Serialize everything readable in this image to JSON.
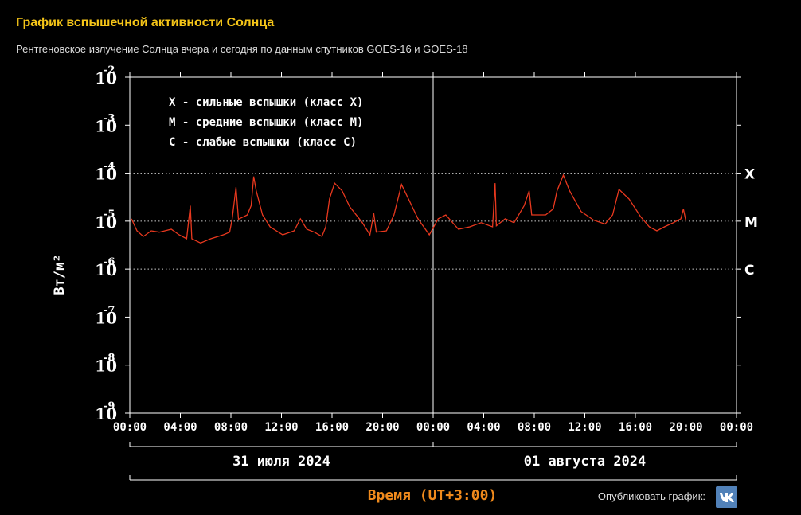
{
  "header": {
    "title": "График вспышечной активности Солнца",
    "subtitle": "Рентгеновское излучение Солнца вчера и сегодня по данным спутников GOES-16 и GOES-18"
  },
  "chart_data": {
    "type": "line",
    "log_y": true,
    "y_label": "Вт/м²",
    "x_label": "Время (UT+3:00)",
    "annotations": [
      "X  - сильные вспышки (класс X)",
      "M  - средние вспышки (класс M)",
      "C  - слабые вспышки (класс C)"
    ],
    "thresholds": [
      {
        "value": 0.0001,
        "label": "X"
      },
      {
        "value": 1e-05,
        "label": "M"
      },
      {
        "value": 1e-06,
        "label": "C"
      }
    ],
    "dates": [
      "31 июля 2024",
      "01 августа 2024"
    ],
    "xlim": [
      0,
      48
    ],
    "xticks": [
      {
        "value": 0,
        "label": "00:00"
      },
      {
        "value": 4,
        "label": "04:00"
      },
      {
        "value": 8,
        "label": "08:00"
      },
      {
        "value": 12,
        "label": "12:00"
      },
      {
        "value": 16,
        "label": "16:00"
      },
      {
        "value": 20,
        "label": "20:00"
      },
      {
        "value": 24,
        "label": "00:00"
      },
      {
        "value": 28,
        "label": "04:00"
      },
      {
        "value": 32,
        "label": "08:00"
      },
      {
        "value": 36,
        "label": "12:00"
      },
      {
        "value": 40,
        "label": "16:00"
      },
      {
        "value": 44,
        "label": "20:00"
      },
      {
        "value": 48,
        "label": "00:00"
      }
    ],
    "ylim": [
      1e-09,
      0.01
    ],
    "yticks": [
      {
        "value": 0.01,
        "label": "10",
        "exponent": "-2"
      },
      {
        "value": 0.001,
        "label": "10",
        "exponent": "-3"
      },
      {
        "value": 0.0001,
        "label": "10",
        "exponent": "-4"
      },
      {
        "value": 1e-05,
        "label": "10",
        "exponent": "-5"
      },
      {
        "value": 1e-06,
        "label": "10",
        "exponent": "-6"
      },
      {
        "value": 1e-07,
        "label": "10",
        "exponent": "-7"
      },
      {
        "value": 1e-08,
        "label": "10",
        "exponent": "-8"
      },
      {
        "value": 1e-09,
        "label": "10",
        "exponent": "-9"
      }
    ],
    "series": [
      {
        "color": "#e8381e",
        "x": [
          0.13,
          0.57,
          1.07,
          1.7,
          2.33,
          3.28,
          3.9,
          4.5,
          4.79,
          4.91,
          5.6,
          6.4,
          7.4,
          7.9,
          8.1,
          8.4,
          8.6,
          9.3,
          9.6,
          9.8,
          10.0,
          10.5,
          11.1,
          12.1,
          13.0,
          13.5,
          14.0,
          14.6,
          15.2,
          15.5,
          15.8,
          16.2,
          16.8,
          17.4,
          18.4,
          19.0,
          19.3,
          19.5,
          20.3,
          20.9,
          21.5,
          22.2,
          22.8,
          23.7,
          24.4,
          25.0,
          26.0,
          26.9,
          27.8,
          28.7,
          28.9,
          29.0,
          29.7,
          30.4,
          31.2,
          31.6,
          31.8,
          32.9,
          33.5,
          33.8,
          34.3,
          34.8,
          35.7,
          36.7,
          37.6,
          38.2,
          38.7,
          39.5,
          40.4,
          41.1,
          41.7,
          42.3,
          43.0,
          43.6,
          43.8,
          44.0
        ],
        "values": [
          1.12e-05,
          6.3e-06,
          4.8e-06,
          6.3e-06,
          5.9e-06,
          6.8e-06,
          5.2e-06,
          4.3e-06,
          2.1e-05,
          4.3e-06,
          3.5e-06,
          4.3e-06,
          5.2e-06,
          5.9e-06,
          1.12e-05,
          5.1e-05,
          1.1e-05,
          1.35e-05,
          2.1e-05,
          8.5e-05,
          4.3e-05,
          1.35e-05,
          7.6e-06,
          5.2e-06,
          6.3e-06,
          1.12e-05,
          6.8e-06,
          5.9e-06,
          4.8e-06,
          7.6e-06,
          2.9e-05,
          6.2e-05,
          4.3e-05,
          2e-05,
          9.3e-06,
          5.2e-06,
          1.45e-05,
          5.9e-06,
          6.3e-06,
          1.35e-05,
          5.8e-05,
          2.4e-05,
          1.12e-05,
          5.2e-06,
          1.12e-05,
          1.35e-05,
          6.8e-06,
          7.6e-06,
          9.3e-06,
          7.6e-06,
          6.2e-05,
          8e-06,
          1.12e-05,
          9.3e-06,
          2.1e-05,
          4.3e-05,
          1.35e-05,
          1.35e-05,
          1.8e-05,
          4.3e-05,
          9.1e-05,
          4.3e-05,
          1.6e-05,
          1.05e-05,
          8.7e-06,
          1.35e-05,
          4.6e-05,
          2.9e-05,
          1.25e-05,
          7.6e-06,
          6.3e-06,
          7.6e-06,
          9.3e-06,
          1.12e-05,
          1.8e-05,
          1e-05
        ]
      }
    ]
  },
  "share": {
    "label": "Опубликовать график:"
  }
}
